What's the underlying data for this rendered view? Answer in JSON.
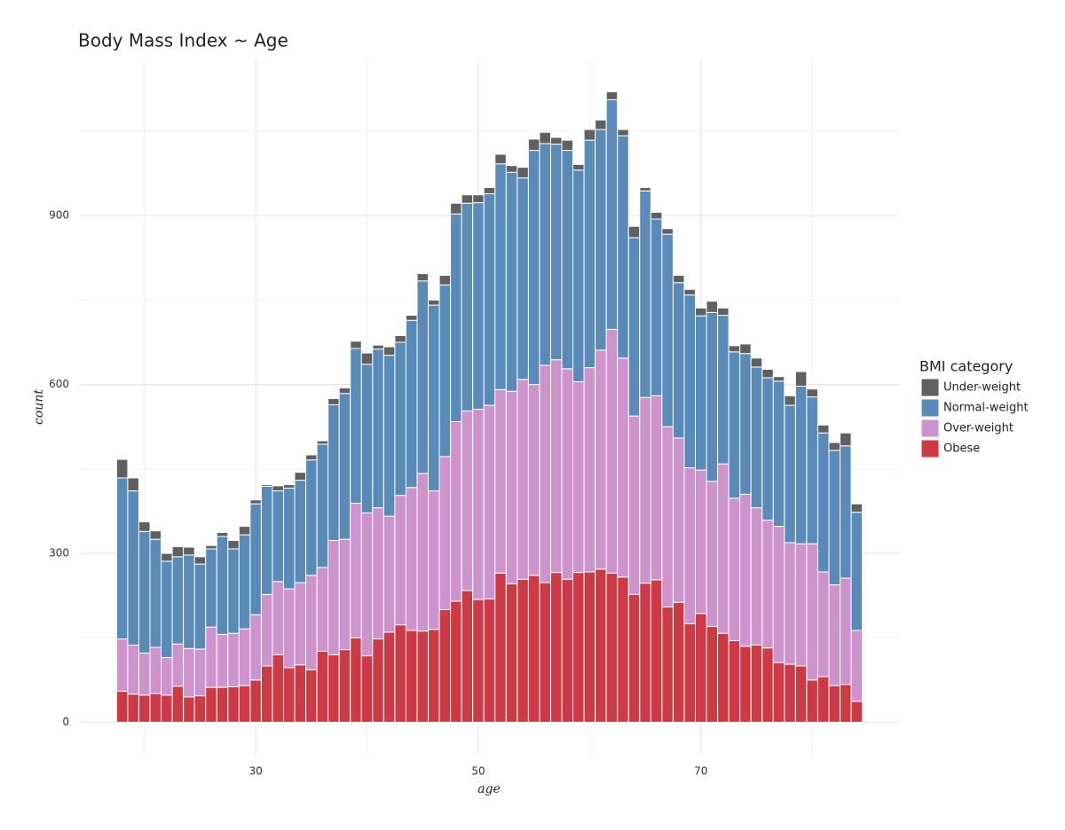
{
  "chart_data": {
    "type": "bar",
    "stacked": true,
    "title": "Body Mass Index ~ Age",
    "x_label": "age",
    "y_label": "count",
    "legend_title": "BMI category",
    "legend_position": "right",
    "x": [
      18,
      19,
      20,
      21,
      22,
      23,
      24,
      25,
      26,
      27,
      28,
      29,
      30,
      31,
      32,
      33,
      34,
      35,
      36,
      37,
      38,
      39,
      40,
      41,
      42,
      43,
      44,
      45,
      46,
      47,
      48,
      49,
      50,
      51,
      52,
      53,
      54,
      55,
      56,
      57,
      58,
      59,
      60,
      61,
      62,
      63,
      64,
      65,
      66,
      67,
      68,
      69,
      70,
      71,
      72,
      73,
      74,
      75,
      76,
      77,
      78,
      79,
      80,
      81,
      82,
      83,
      84
    ],
    "series": [
      {
        "name": "Under-weight",
        "color": "#606060",
        "values": [
          33,
          23,
          17,
          15,
          14,
          18,
          14,
          13,
          6,
          7,
          15,
          15,
          7,
          3,
          9,
          6,
          14,
          9,
          6,
          11,
          10,
          13,
          20,
          7,
          15,
          12,
          9,
          13,
          9,
          17,
          19,
          15,
          14,
          11,
          17,
          12,
          19,
          20,
          20,
          12,
          18,
          10,
          19,
          17,
          14,
          11,
          20,
          6,
          12,
          10,
          13,
          10,
          14,
          20,
          13,
          11,
          17,
          16,
          15,
          8,
          17,
          26,
          14,
          14,
          14,
          23,
          15
        ]
      },
      {
        "name": "Normal-weight",
        "color": "#5a8ab8",
        "values": [
          286,
          274,
          216,
          192,
          171,
          155,
          166,
          151,
          139,
          174,
          150,
          167,
          197,
          192,
          161,
          179,
          182,
          205,
          219,
          241,
          259,
          275,
          264,
          282,
          286,
          272,
          297,
          342,
          330,
          305,
          369,
          369,
          367,
          376,
          401,
          389,
          358,
          416,
          394,
          383,
          388,
          376,
          404,
          392,
          408,
          395,
          317,
          367,
          314,
          342,
          276,
          307,
          274,
          300,
          264,
          260,
          250,
          250,
          253,
          258,
          244,
          280,
          261,
          247,
          239,
          235,
          210
        ]
      },
      {
        "name": "Over-weight",
        "color": "#cc93cc",
        "values": [
          93,
          87,
          75,
          82,
          67,
          75,
          86,
          83,
          107,
          94,
          95,
          101,
          116,
          127,
          130,
          140,
          146,
          168,
          149,
          203,
          196,
          239,
          254,
          233,
          206,
          230,
          254,
          280,
          246,
          272,
          319,
          319,
          338,
          344,
          326,
          342,
          355,
          339,
          386,
          378,
          374,
          339,
          363,
          389,
          433,
          389,
          317,
          330,
          327,
          320,
          292,
          277,
          255,
          258,
          301,
          253,
          270,
          244,
          227,
          242,
          216,
          217,
          242,
          186,
          179,
          189,
          126
        ]
      },
      {
        "name": "Obese",
        "color": "#cc3a45",
        "values": [
          55,
          50,
          48,
          51,
          48,
          64,
          45,
          47,
          62,
          62,
          63,
          65,
          75,
          100,
          120,
          97,
          102,
          93,
          126,
          120,
          129,
          150,
          118,
          148,
          160,
          173,
          163,
          162,
          165,
          200,
          215,
          234,
          218,
          219,
          265,
          246,
          254,
          261,
          248,
          266,
          254,
          266,
          267,
          272,
          265,
          258,
          227,
          247,
          253,
          205,
          213,
          175,
          193,
          170,
          158,
          145,
          135,
          137,
          132,
          106,
          103,
          100,
          75,
          81,
          65,
          67,
          37
        ]
      }
    ],
    "xlim": [
      14.2,
      87.8
    ],
    "xticks": [
      30,
      50,
      70
    ],
    "ylim": [
      -56,
      1176
    ],
    "yticks": [
      0,
      300,
      600,
      900
    ],
    "grid": true
  }
}
